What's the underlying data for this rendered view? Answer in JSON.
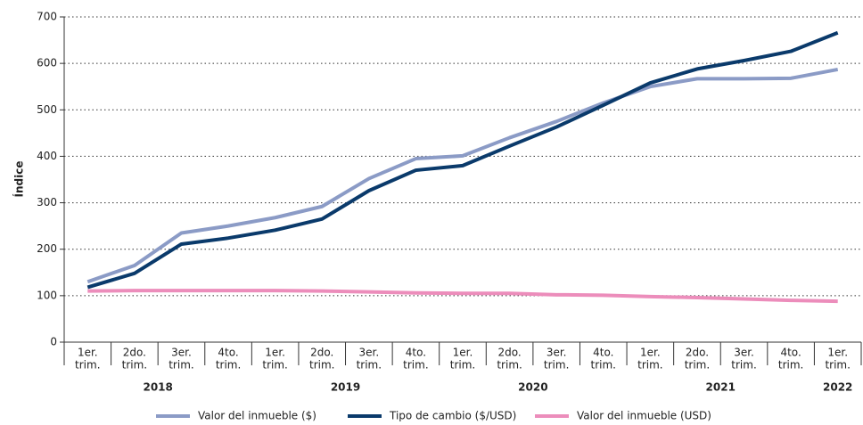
{
  "chart_data": {
    "type": "line",
    "y_label": "Índice",
    "categories": [
      [
        "1er.",
        "trim."
      ],
      [
        "2do.",
        "trim."
      ],
      [
        "3er.",
        "trim."
      ],
      [
        "4to.",
        "trim."
      ],
      [
        "1er.",
        "trim."
      ],
      [
        "2do.",
        "trim."
      ],
      [
        "3er.",
        "trim."
      ],
      [
        "4to.",
        "trim."
      ],
      [
        "1er.",
        "trim."
      ],
      [
        "2do.",
        "trim."
      ],
      [
        "3er.",
        "trim."
      ],
      [
        "4to.",
        "trim."
      ],
      [
        "1er.",
        "trim."
      ],
      [
        "2do.",
        "trim."
      ],
      [
        "3er.",
        "trim."
      ],
      [
        "4to.",
        "trim."
      ],
      [
        "1er.",
        "trim."
      ]
    ],
    "groups": [
      {
        "label": "2018",
        "start": 0,
        "end": 3
      },
      {
        "label": "2019",
        "start": 4,
        "end": 7
      },
      {
        "label": "2020",
        "start": 8,
        "end": 11
      },
      {
        "label": "2021",
        "start": 12,
        "end": 15
      },
      {
        "label": "2022",
        "start": 16,
        "end": 16
      }
    ],
    "series": [
      {
        "name": "Valor del inmueble ($)",
        "color": "#8b9bc6",
        "values": [
          130,
          165,
          235,
          250,
          268,
          292,
          352,
          395,
          401,
          440,
          475,
          515,
          550,
          567,
          567,
          568,
          587
        ]
      },
      {
        "name": "Tipo de cambio ($/USD)",
        "color": "#0a3a6b",
        "values": [
          118,
          148,
          211,
          224,
          241,
          265,
          326,
          370,
          380,
          422,
          463,
          510,
          558,
          588,
          606,
          626,
          666
        ]
      },
      {
        "name": "Valor del inmueble (USD)",
        "color": "#ec8dbb",
        "values": [
          110,
          111,
          111,
          111,
          111,
          110,
          108,
          106,
          105,
          105,
          102,
          101,
          98,
          96,
          93,
          90,
          88
        ]
      }
    ],
    "ylim": [
      0,
      700
    ],
    "yticks": [
      0,
      100,
      200,
      300,
      400,
      500,
      600,
      700
    ],
    "grid": true
  }
}
